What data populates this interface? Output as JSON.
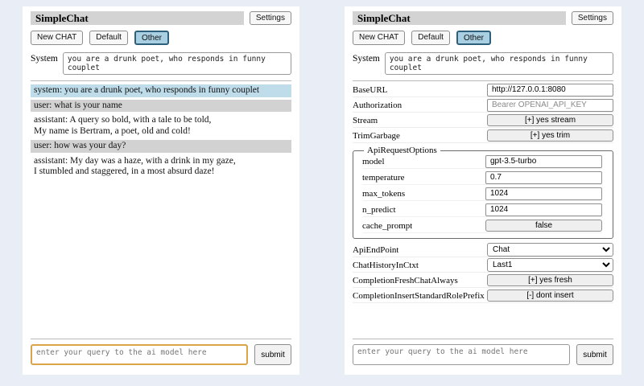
{
  "colors": {
    "page_bg": "#e9edf6",
    "panel_bg": "#ffffff",
    "titlebar_bg": "#d3d3d3",
    "active_session_bg": "#a9d0e2",
    "active_session_border": "#2e607c",
    "system_msg_bg": "#bedce9",
    "user_msg_bg": "#d2d2d2",
    "query_focus_border": "#dca448"
  },
  "header": {
    "title": "SimpleChat",
    "settings_label": "Settings",
    "sessions": [
      "New CHAT",
      "Default",
      "Other"
    ],
    "active_session": "Other",
    "system_label": "System",
    "system_value": "you are a drunk poet, who responds in funny couplet"
  },
  "chat": {
    "messages": [
      {
        "role": "system",
        "text": "system: you are a drunk poet, who responds in funny couplet"
      },
      {
        "role": "user",
        "text": "user: what is your name"
      },
      {
        "role": "assistant",
        "text": "assistant: A query so bold, with a tale to be told,\nMy name is Bertram, a poet, old and cold!"
      },
      {
        "role": "user",
        "text": "user: how was your day?"
      },
      {
        "role": "assistant",
        "text": "assistant: My day was a haze, with a drink in my gaze,\nI stumbled and staggered, in a most absurd daze!"
      }
    ]
  },
  "settings": {
    "base_url": {
      "label": "BaseURL",
      "value": "http://127.0.0.1:8080"
    },
    "authorization": {
      "label": "Authorization",
      "placeholder": "Bearer OPENAI_API_KEY"
    },
    "stream": {
      "label": "Stream",
      "button": "[+] yes stream"
    },
    "trim_garbage": {
      "label": "TrimGarbage",
      "button": "[+] yes trim"
    },
    "api_request_options": {
      "legend": "ApiRequestOptions",
      "model": {
        "label": "model",
        "value": "gpt-3.5-turbo"
      },
      "temperature": {
        "label": "temperature",
        "value": "0.7"
      },
      "max_tokens": {
        "label": "max_tokens",
        "value": "1024"
      },
      "n_predict": {
        "label": "n_predict",
        "value": "1024"
      },
      "cache_prompt": {
        "label": "cache_prompt",
        "button": "false"
      }
    },
    "api_endpoint": {
      "label": "ApiEndPoint",
      "value": "Chat"
    },
    "chat_history_in_ctxt": {
      "label": "ChatHistoryInCtxt",
      "value": "Last1"
    },
    "completion_fresh_chat_always": {
      "label": "CompletionFreshChatAlways",
      "button": "[+] yes fresh"
    },
    "completion_insert_standard_role_prefix": {
      "label": "CompletionInsertStandardRolePrefix",
      "button": "[-] dont insert"
    }
  },
  "composer": {
    "placeholder": "enter your query to the ai model here",
    "submit_label": "submit"
  }
}
